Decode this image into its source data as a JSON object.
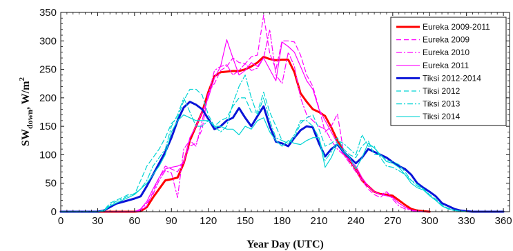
{
  "chart_data": {
    "type": "line",
    "xlabel": "Year Day (UTC)",
    "ylabel_main": "SW",
    "ylabel_sub": "down",
    "ylabel_unit": ", W/m",
    "ylabel_sup": "2",
    "xlim": [
      0,
      365
    ],
    "ylim": [
      0,
      350
    ],
    "xticks": [
      0,
      30,
      60,
      90,
      120,
      150,
      180,
      210,
      240,
      270,
      300,
      330,
      360
    ],
    "yticks": [
      0,
      50,
      100,
      150,
      200,
      250,
      300,
      350
    ],
    "grid": false,
    "legend_position": "top-right",
    "series": [
      {
        "name": "Eureka 2009-2011",
        "color": "#ff0000",
        "style": "solid",
        "width": 3,
        "x": [
          0,
          5,
          10,
          15,
          20,
          25,
          30,
          35,
          40,
          45,
          50,
          55,
          60,
          65,
          70,
          75,
          80,
          85,
          90,
          95,
          100,
          105,
          110,
          115,
          120,
          125,
          130,
          135,
          140,
          145,
          150,
          155,
          160,
          165,
          170,
          175,
          180,
          185,
          190,
          195,
          200,
          205,
          210,
          215,
          220,
          225,
          230,
          235,
          240,
          245,
          250,
          255,
          260,
          265,
          270,
          275,
          280,
          285,
          290,
          295,
          300
        ],
        "y": [
          0,
          0,
          0,
          0,
          0,
          0,
          0,
          0,
          0,
          0,
          0,
          0,
          0,
          1,
          8,
          25,
          40,
          55,
          57,
          60,
          85,
          125,
          150,
          175,
          210,
          238,
          245,
          246,
          247,
          247,
          250,
          255,
          262,
          272,
          268,
          266,
          267,
          267,
          245,
          208,
          193,
          180,
          175,
          168,
          148,
          125,
          105,
          90,
          75,
          55,
          45,
          35,
          31,
          30,
          28,
          20,
          12,
          5,
          2,
          1,
          0
        ]
      },
      {
        "name": "Eureka 2009",
        "color": "#ff00ff",
        "style": "dashed",
        "width": 1.2,
        "x": [
          0,
          20,
          40,
          55,
          60,
          65,
          70,
          75,
          80,
          85,
          90,
          95,
          100,
          105,
          110,
          115,
          120,
          125,
          130,
          135,
          140,
          145,
          150,
          155,
          160,
          165,
          170,
          175,
          180,
          185,
          190,
          195,
          200,
          205,
          210,
          215,
          220,
          225,
          230,
          235,
          240,
          245,
          250,
          255,
          260,
          265,
          270,
          275,
          280,
          285,
          290,
          295,
          300
        ],
        "y": [
          0,
          0,
          0,
          0,
          0,
          2,
          10,
          35,
          60,
          80,
          75,
          70,
          90,
          115,
          120,
          145,
          210,
          225,
          248,
          255,
          270,
          262,
          260,
          272,
          275,
          345,
          278,
          250,
          300,
          300,
          298,
          275,
          240,
          220,
          182,
          140,
          150,
          172,
          105,
          90,
          75,
          55,
          40,
          30,
          25,
          35,
          25,
          15,
          8,
          3,
          1,
          0,
          0
        ]
      },
      {
        "name": "Eureka 2010",
        "color": "#ff00ff",
        "style": "dashdot",
        "width": 1.2,
        "x": [
          0,
          40,
          55,
          60,
          65,
          70,
          75,
          80,
          85,
          90,
          95,
          100,
          105,
          110,
          115,
          120,
          125,
          130,
          135,
          140,
          145,
          150,
          155,
          160,
          165,
          170,
          175,
          180,
          185,
          190,
          195,
          200,
          205,
          210,
          215,
          220,
          225,
          230,
          235,
          240,
          245,
          250,
          255,
          260,
          265,
          270,
          275,
          280,
          285,
          290,
          295
        ],
        "y": [
          0,
          0,
          0,
          0,
          3,
          15,
          30,
          55,
          72,
          68,
          25,
          110,
          125,
          115,
          160,
          205,
          248,
          255,
          258,
          240,
          248,
          260,
          248,
          252,
          270,
          320,
          240,
          225,
          280,
          255,
          200,
          170,
          160,
          150,
          145,
          125,
          110,
          100,
          85,
          70,
          55,
          45,
          35,
          30,
          35,
          22,
          10,
          5,
          2,
          0,
          0
        ]
      },
      {
        "name": "Eureka 2011",
        "color": "#ff00ff",
        "style": "solid",
        "width": 1.2,
        "x": [
          0,
          40,
          55,
          60,
          65,
          70,
          75,
          80,
          85,
          90,
          95,
          100,
          105,
          110,
          115,
          120,
          125,
          130,
          135,
          140,
          145,
          150,
          155,
          160,
          165,
          170,
          175,
          180,
          185,
          190,
          195,
          200,
          205,
          210,
          215,
          220,
          225,
          230,
          235,
          240,
          245,
          250,
          255,
          260,
          265,
          270,
          275,
          280,
          285,
          290,
          295
        ],
        "y": [
          0,
          0,
          0,
          0,
          5,
          18,
          40,
          60,
          75,
          78,
          80,
          85,
          130,
          150,
          175,
          200,
          235,
          255,
          302,
          270,
          240,
          248,
          262,
          255,
          270,
          250,
          230,
          298,
          290,
          280,
          255,
          230,
          215,
          180,
          160,
          140,
          120,
          100,
          90,
          80,
          60,
          45,
          35,
          30,
          28,
          25,
          15,
          8,
          3,
          1,
          0
        ]
      },
      {
        "name": "Tiksi 2012-2014",
        "color": "#0a14d8",
        "style": "solid",
        "width": 3,
        "x": [
          0,
          5,
          10,
          15,
          20,
          25,
          30,
          35,
          40,
          45,
          50,
          55,
          60,
          65,
          70,
          75,
          80,
          85,
          90,
          95,
          100,
          105,
          110,
          115,
          120,
          125,
          130,
          135,
          140,
          145,
          150,
          155,
          160,
          165,
          170,
          175,
          180,
          185,
          190,
          195,
          200,
          205,
          210,
          215,
          220,
          225,
          230,
          235,
          240,
          245,
          250,
          255,
          260,
          265,
          270,
          275,
          280,
          285,
          290,
          295,
          300,
          305,
          310,
          315,
          320,
          325,
          330,
          335,
          340,
          345,
          350,
          355,
          360
        ],
        "y": [
          0,
          0,
          0,
          0,
          0,
          0,
          0,
          2,
          8,
          14,
          17,
          20,
          23,
          27,
          45,
          65,
          85,
          105,
          130,
          160,
          183,
          193,
          188,
          180,
          163,
          145,
          150,
          160,
          165,
          182,
          165,
          150,
          168,
          185,
          150,
          123,
          120,
          115,
          130,
          143,
          150,
          148,
          120,
          97,
          110,
          118,
          105,
          95,
          85,
          95,
          110,
          105,
          100,
          95,
          87,
          80,
          75,
          65,
          50,
          42,
          35,
          27,
          15,
          10,
          5,
          2,
          1,
          0,
          0,
          0,
          0,
          0,
          0
        ]
      },
      {
        "name": "Tiksi 2012",
        "color": "#00d4d4",
        "style": "dashed",
        "width": 1.2,
        "x": [
          0,
          30,
          35,
          40,
          45,
          50,
          55,
          60,
          65,
          70,
          75,
          80,
          85,
          90,
          95,
          100,
          105,
          110,
          115,
          120,
          125,
          130,
          135,
          140,
          145,
          150,
          155,
          160,
          165,
          170,
          175,
          180,
          185,
          190,
          195,
          200,
          205,
          210,
          215,
          220,
          225,
          230,
          235,
          240,
          245,
          250,
          255,
          260,
          265,
          270,
          275,
          280,
          285,
          290,
          295,
          300,
          305,
          310,
          315,
          320,
          325,
          330
        ],
        "y": [
          0,
          0,
          2,
          15,
          20,
          25,
          30,
          30,
          55,
          80,
          95,
          110,
          130,
          155,
          165,
          195,
          215,
          215,
          205,
          170,
          150,
          160,
          165,
          185,
          200,
          200,
          175,
          175,
          210,
          175,
          150,
          125,
          120,
          130,
          155,
          165,
          170,
          145,
          115,
          120,
          130,
          110,
          100,
          95,
          115,
          125,
          100,
          100,
          90,
          88,
          83,
          70,
          55,
          48,
          40,
          30,
          22,
          12,
          6,
          3,
          1,
          0
        ]
      },
      {
        "name": "Tiksi 2013",
        "color": "#00d4d4",
        "style": "dashdot",
        "width": 1.2,
        "x": [
          0,
          30,
          35,
          40,
          45,
          50,
          55,
          60,
          65,
          70,
          75,
          80,
          85,
          90,
          95,
          100,
          105,
          110,
          115,
          120,
          125,
          130,
          135,
          140,
          145,
          150,
          155,
          160,
          165,
          170,
          175,
          180,
          185,
          190,
          195,
          200,
          205,
          210,
          215,
          220,
          225,
          230,
          235,
          240,
          245,
          250,
          255,
          260,
          265,
          270,
          275,
          280,
          285,
          290,
          295,
          300,
          305,
          310,
          315,
          320,
          325,
          330
        ],
        "y": [
          0,
          0,
          2,
          12,
          18,
          22,
          28,
          32,
          40,
          55,
          80,
          95,
          110,
          150,
          170,
          200,
          175,
          150,
          150,
          160,
          150,
          140,
          150,
          190,
          220,
          240,
          200,
          170,
          200,
          160,
          130,
          125,
          120,
          135,
          160,
          160,
          150,
          130,
          90,
          105,
          125,
          120,
          110,
          100,
          135,
          115,
          115,
          95,
          80,
          78,
          72,
          65,
          55,
          45,
          40,
          28,
          20,
          10,
          5,
          2,
          1,
          0
        ]
      },
      {
        "name": "Tiksi 2014",
        "color": "#00d4d4",
        "style": "solid",
        "width": 1.2,
        "x": [
          0,
          30,
          35,
          40,
          45,
          50,
          55,
          60,
          65,
          70,
          75,
          80,
          85,
          90,
          95,
          100,
          105,
          110,
          115,
          120,
          125,
          130,
          135,
          140,
          145,
          150,
          155,
          160,
          165,
          170,
          175,
          180,
          185,
          190,
          195,
          200,
          205,
          210,
          215,
          220,
          225,
          230,
          235,
          240,
          245,
          250,
          255,
          260,
          265,
          270,
          275,
          280,
          285,
          290,
          295,
          300,
          305,
          310,
          315,
          320,
          325,
          330
        ],
        "y": [
          0,
          0,
          1,
          10,
          15,
          20,
          25,
          30,
          40,
          50,
          65,
          80,
          100,
          140,
          160,
          170,
          165,
          160,
          160,
          160,
          150,
          150,
          145,
          145,
          135,
          150,
          145,
          160,
          165,
          140,
          125,
          115,
          125,
          120,
          118,
          125,
          130,
          130,
          78,
          95,
          120,
          105,
          95,
          75,
          95,
          120,
          112,
          100,
          88,
          85,
          78,
          65,
          50,
          42,
          38,
          28,
          20,
          10,
          5,
          2,
          1,
          0
        ]
      }
    ]
  }
}
